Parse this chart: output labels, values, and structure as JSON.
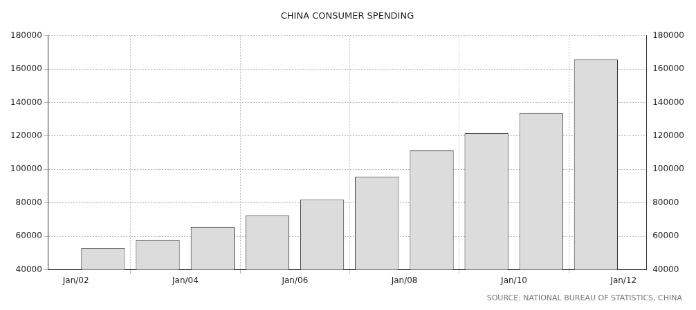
{
  "chart_data": {
    "type": "bar",
    "title": "CHINA CONSUMER SPENDING",
    "x": [
      "2002-07",
      "2003-07",
      "2004-07",
      "2005-07",
      "2006-07",
      "2007-07",
      "2008-07",
      "2009-07",
      "2010-07",
      "2011-07"
    ],
    "values": [
      53000,
      57700,
      65500,
      72400,
      81900,
      95700,
      111300,
      121600,
      133700,
      165700
    ],
    "color": "#dcdcdc",
    "xlim": [
      "2001-07",
      "2012-06"
    ],
    "xticks": [
      {
        "value": "2002-01",
        "label": "Jan/02"
      },
      {
        "value": "2004-01",
        "label": "Jan/04"
      },
      {
        "value": "2006-01",
        "label": "Jan/06"
      },
      {
        "value": "2008-01",
        "label": "Jan/08"
      },
      {
        "value": "2010-01",
        "label": "Jan/10"
      },
      {
        "value": "2012-01",
        "label": "Jan/12"
      }
    ],
    "ylim": [
      40000,
      180000
    ],
    "yticks": [
      40000,
      60000,
      80000,
      100000,
      120000,
      140000,
      160000,
      180000
    ],
    "y2lim": [
      40000,
      180000
    ],
    "y2ticks": [
      40000,
      60000,
      80000,
      100000,
      120000,
      140000,
      160000,
      180000
    ],
    "grid": true,
    "annotations": [
      "SOURCE: NATIONAL BUREAU OF STATISTICS, CHINA"
    ]
  }
}
